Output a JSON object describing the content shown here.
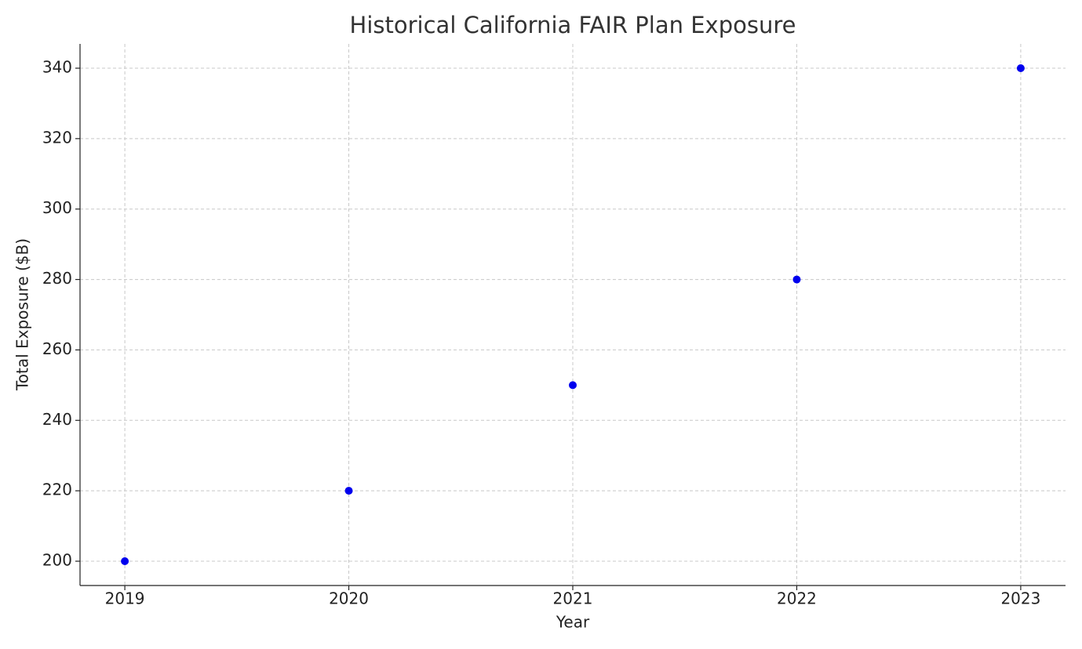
{
  "chart_data": {
    "type": "line",
    "title": "Historical California FAIR Plan Exposure",
    "x_label": "Year",
    "y_label": "Total Exposure ($B)",
    "x": [
      2019,
      2020,
      2021,
      2022,
      2023
    ],
    "values": [
      200,
      220,
      250,
      280,
      340
    ],
    "color": "#0000ee",
    "xlim": [
      2018.8,
      2023.2
    ],
    "xticks": [
      2019,
      2020,
      2021,
      2022,
      2023
    ],
    "ylim": [
      193.1,
      346.9
    ],
    "yticks": [
      200,
      220,
      240,
      260,
      280,
      300,
      320,
      340
    ],
    "grid": true
  }
}
